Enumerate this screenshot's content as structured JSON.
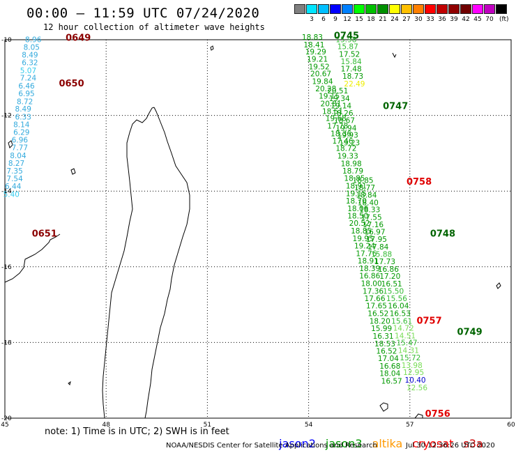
{
  "header": {
    "title": "00:00 – 11:59 UTC 07/24/2020",
    "subtitle": "12 hour collection of altimeter wave heights"
  },
  "legend": {
    "unit": "(ft)",
    "colors": [
      "#808080",
      "#00e5ff",
      "#00bfff",
      "#0000ff",
      "#0080ff",
      "#00ff00",
      "#00c000",
      "#009000",
      "#ffff00",
      "#ffc000",
      "#ff8000",
      "#ff0000",
      "#c00000",
      "#900000",
      "#700000",
      "#ff00ff",
      "#c000c0",
      "#000000"
    ],
    "labels": [
      "",
      "3",
      "6",
      "9",
      "12",
      "15",
      "18",
      "21",
      "24",
      "27",
      "30",
      "33",
      "36",
      "39",
      "42",
      "45",
      "70",
      ""
    ]
  },
  "map": {
    "x_ticks": [
      {
        "value": 45,
        "label": "45"
      },
      {
        "value": 48,
        "label": "48"
      },
      {
        "value": 51,
        "label": "51"
      },
      {
        "value": 54,
        "label": "54"
      },
      {
        "value": 57,
        "label": "57"
      },
      {
        "value": 60,
        "label": "60"
      }
    ],
    "y_ticks": [
      {
        "value": -10,
        "label": "-10"
      },
      {
        "value": -12,
        "label": "-12"
      },
      {
        "value": -14,
        "label": "-14"
      },
      {
        "value": -16,
        "label": "-16"
      },
      {
        "value": -18,
        "label": "-18"
      },
      {
        "value": -20,
        "label": "-20"
      }
    ],
    "lon_range": [
      45,
      60
    ],
    "lat_range": [
      -20,
      -10
    ],
    "passes": [
      {
        "label": "0649",
        "color": "#8b0000",
        "lon": 46.8,
        "lat": -10.03
      },
      {
        "label": "0650",
        "color": "#8b0000",
        "lon": 46.6,
        "lat": -11.23
      },
      {
        "label": "0651",
        "color": "#8b0000",
        "lon": 45.8,
        "lat": -15.2
      },
      {
        "label": "0745",
        "color": "#006400",
        "lon": 54.75,
        "lat": -9.97
      },
      {
        "label": "0747",
        "color": "#006400",
        "lon": 56.2,
        "lat": -11.83
      },
      {
        "label": "0758",
        "color": "#e00000",
        "lon": 56.9,
        "lat": -13.83
      },
      {
        "label": "0748",
        "color": "#006400",
        "lon": 57.6,
        "lat": -15.2
      },
      {
        "label": "0757",
        "color": "#e00000",
        "lon": 57.2,
        "lat": -17.5
      },
      {
        "label": "0749",
        "color": "#006400",
        "lon": 58.4,
        "lat": -17.8
      },
      {
        "label": "0756",
        "color": "#e00000",
        "lon": 57.45,
        "lat": -19.96
      }
    ],
    "track_points": [
      {
        "text": "8.96",
        "lon": 45.6,
        "lat": -10.06,
        "color": "#33aadd"
      },
      {
        "text": "8.05",
        "lon": 45.55,
        "lat": -10.27,
        "color": "#33aadd"
      },
      {
        "text": "8.49",
        "lon": 45.5,
        "lat": -10.47,
        "color": "#33aadd"
      },
      {
        "text": "6.32",
        "lon": 45.5,
        "lat": -10.67,
        "color": "#33aadd"
      },
      {
        "text": "5.07",
        "lon": 45.45,
        "lat": -10.88,
        "color": "#33ccee"
      },
      {
        "text": "7.24",
        "lon": 45.45,
        "lat": -11.08,
        "color": "#33aadd"
      },
      {
        "text": "6.46",
        "lon": 45.4,
        "lat": -11.29,
        "color": "#33aadd"
      },
      {
        "text": "6.95",
        "lon": 45.4,
        "lat": -11.49,
        "color": "#33aadd"
      },
      {
        "text": "8.72",
        "lon": 45.35,
        "lat": -11.7,
        "color": "#33aadd"
      },
      {
        "text": "8.49",
        "lon": 45.3,
        "lat": -11.9,
        "color": "#33aadd"
      },
      {
        "text": "6.33",
        "lon": 45.3,
        "lat": -12.11,
        "color": "#33aadd"
      },
      {
        "text": "8.14",
        "lon": 45.25,
        "lat": -12.31,
        "color": "#33aadd"
      },
      {
        "text": "6.29",
        "lon": 45.25,
        "lat": -12.51,
        "color": "#33aadd"
      },
      {
        "text": "6.96",
        "lon": 45.2,
        "lat": -12.72,
        "color": "#33aadd"
      },
      {
        "text": "7.77",
        "lon": 45.2,
        "lat": -12.92,
        "color": "#33aadd"
      },
      {
        "text": "8.04",
        "lon": 45.15,
        "lat": -13.13,
        "color": "#33aadd"
      },
      {
        "text": "8.27",
        "lon": 45.1,
        "lat": -13.33,
        "color": "#33aadd"
      },
      {
        "text": "7.35",
        "lon": 45.05,
        "lat": -13.54,
        "color": "#33aadd"
      },
      {
        "text": "7.54",
        "lon": 45.05,
        "lat": -13.74,
        "color": "#33aadd"
      },
      {
        "text": "6.44",
        "lon": 45.0,
        "lat": -13.94,
        "color": "#33aadd"
      },
      {
        "text": "5.40",
        "lon": 44.95,
        "lat": -14.15,
        "color": "#33ccee"
      },
      {
        "text": "18.83",
        "lon": 53.8,
        "lat": -10.0,
        "color": "#009900"
      },
      {
        "text": "18.41",
        "lon": 53.85,
        "lat": -10.2,
        "color": "#009900"
      },
      {
        "text": "19.29",
        "lon": 53.9,
        "lat": -10.39,
        "color": "#009900"
      },
      {
        "text": "19.21",
        "lon": 53.95,
        "lat": -10.58,
        "color": "#009900"
      },
      {
        "text": "19.52",
        "lon": 54.0,
        "lat": -10.78,
        "color": "#009900"
      },
      {
        "text": "20.67",
        "lon": 54.05,
        "lat": -10.97,
        "color": "#009900"
      },
      {
        "text": "19.84",
        "lon": 54.1,
        "lat": -11.17,
        "color": "#009900"
      },
      {
        "text": "20.28",
        "lon": 54.2,
        "lat": -11.36,
        "color": "#009900"
      },
      {
        "text": "19.15",
        "lon": 54.3,
        "lat": -11.56,
        "color": "#009900"
      },
      {
        "text": "20.81",
        "lon": 54.35,
        "lat": -11.76,
        "color": "#009900"
      },
      {
        "text": "18.51",
        "lon": 54.4,
        "lat": -11.96,
        "color": "#009900"
      },
      {
        "text": "19.68",
        "lon": 54.5,
        "lat": -12.15,
        "color": "#009900"
      },
      {
        "text": "17.78",
        "lon": 54.55,
        "lat": -12.35,
        "color": "#009900"
      },
      {
        "text": "18.36",
        "lon": 54.65,
        "lat": -12.55,
        "color": "#009900"
      },
      {
        "text": "17.46",
        "lon": 54.7,
        "lat": -12.74,
        "color": "#009900"
      },
      {
        "text": "18.72",
        "lon": 54.8,
        "lat": -12.94,
        "color": "#009900"
      },
      {
        "text": "19.33",
        "lon": 54.85,
        "lat": -13.14,
        "color": "#009900"
      },
      {
        "text": "18.98",
        "lon": 54.95,
        "lat": -13.34,
        "color": "#009900"
      },
      {
        "text": "18.79",
        "lon": 55.0,
        "lat": -13.54,
        "color": "#009900"
      },
      {
        "text": "18.85",
        "lon": 55.05,
        "lat": -13.73,
        "color": "#009900"
      },
      {
        "text": "18.91",
        "lon": 55.1,
        "lat": -13.93,
        "color": "#009900"
      },
      {
        "text": "19.15",
        "lon": 55.1,
        "lat": -14.13,
        "color": "#009900"
      },
      {
        "text": "18.70",
        "lon": 55.1,
        "lat": -14.33,
        "color": "#009900"
      },
      {
        "text": "18.06",
        "lon": 55.15,
        "lat": -14.53,
        "color": "#009900"
      },
      {
        "text": "18.50",
        "lon": 55.15,
        "lat": -14.72,
        "color": "#009900"
      },
      {
        "text": "20.52",
        "lon": 55.2,
        "lat": -14.92,
        "color": "#009900"
      },
      {
        "text": "18.85",
        "lon": 55.25,
        "lat": -15.12,
        "color": "#009900"
      },
      {
        "text": "19.95",
        "lon": 55.3,
        "lat": -15.32,
        "color": "#009900"
      },
      {
        "text": "19.24",
        "lon": 55.35,
        "lat": -15.52,
        "color": "#009900"
      },
      {
        "text": "17.76",
        "lon": 55.4,
        "lat": -15.72,
        "color": "#009900"
      },
      {
        "text": "18.91",
        "lon": 55.45,
        "lat": -15.91,
        "color": "#009900"
      },
      {
        "text": "18.39",
        "lon": 55.5,
        "lat": -16.11,
        "color": "#009900"
      },
      {
        "text": "16.86",
        "lon": 55.5,
        "lat": -16.31,
        "color": "#009900"
      },
      {
        "text": "18.00",
        "lon": 55.55,
        "lat": -16.51,
        "color": "#009900"
      },
      {
        "text": "17.36",
        "lon": 55.6,
        "lat": -16.71,
        "color": "#009900"
      },
      {
        "text": "17.66",
        "lon": 55.65,
        "lat": -16.91,
        "color": "#009900"
      },
      {
        "text": "17.65",
        "lon": 55.7,
        "lat": -17.1,
        "color": "#009900"
      },
      {
        "text": "16.52",
        "lon": 55.75,
        "lat": -17.3,
        "color": "#009900"
      },
      {
        "text": "18.20",
        "lon": 55.8,
        "lat": -17.5,
        "color": "#009900"
      },
      {
        "text": "15.99",
        "lon": 55.85,
        "lat": -17.7,
        "color": "#009900"
      },
      {
        "text": "16.31",
        "lon": 55.9,
        "lat": -17.9,
        "color": "#009900"
      },
      {
        "text": "18.53",
        "lon": 55.95,
        "lat": -18.1,
        "color": "#009900"
      },
      {
        "text": "16.52",
        "lon": 56.0,
        "lat": -18.3,
        "color": "#009900"
      },
      {
        "text": "17.04",
        "lon": 56.05,
        "lat": -18.49,
        "color": "#009900"
      },
      {
        "text": "16.68",
        "lon": 56.1,
        "lat": -18.69,
        "color": "#009900"
      },
      {
        "text": "18.04",
        "lon": 56.1,
        "lat": -18.89,
        "color": "#009900"
      },
      {
        "text": "16.57",
        "lon": 56.15,
        "lat": -19.09,
        "color": "#009900"
      },
      {
        "text": "15.98",
        "lon": 54.8,
        "lat": -10.06,
        "color": "#33bb33"
      },
      {
        "text": "15.87",
        "lon": 54.85,
        "lat": -10.25,
        "color": "#33bb33"
      },
      {
        "text": "17.52",
        "lon": 54.9,
        "lat": -10.45,
        "color": "#009900"
      },
      {
        "text": "15.84",
        "lon": 54.95,
        "lat": -10.64,
        "color": "#33bb33"
      },
      {
        "text": "17.48",
        "lon": 54.95,
        "lat": -10.84,
        "color": "#009900"
      },
      {
        "text": "18.73",
        "lon": 55.0,
        "lat": -11.03,
        "color": "#009900"
      },
      {
        "text": "22.49",
        "lon": 55.05,
        "lat": -11.23,
        "color": "#eeee00"
      },
      {
        "text": "20.51",
        "lon": 54.55,
        "lat": -11.42,
        "color": "#009900"
      },
      {
        "text": "19.34",
        "lon": 54.6,
        "lat": -11.62,
        "color": "#009900"
      },
      {
        "text": "19.14",
        "lon": 54.65,
        "lat": -11.81,
        "color": "#009900"
      },
      {
        "text": "18.26",
        "lon": 54.7,
        "lat": -12.01,
        "color": "#009900"
      },
      {
        "text": "18.67",
        "lon": 54.75,
        "lat": -12.2,
        "color": "#009900"
      },
      {
        "text": "19.94",
        "lon": 54.8,
        "lat": -12.4,
        "color": "#009900"
      },
      {
        "text": "19.93",
        "lon": 54.85,
        "lat": -12.59,
        "color": "#009900"
      },
      {
        "text": "19.23",
        "lon": 54.9,
        "lat": -12.79,
        "color": "#009900"
      },
      {
        "text": "18.85",
        "lon": 55.3,
        "lat": -13.78,
        "color": "#009900"
      },
      {
        "text": "18.77",
        "lon": 55.35,
        "lat": -13.98,
        "color": "#009900"
      },
      {
        "text": "18.84",
        "lon": 55.4,
        "lat": -14.17,
        "color": "#009900"
      },
      {
        "text": "18.40",
        "lon": 55.45,
        "lat": -14.37,
        "color": "#009900"
      },
      {
        "text": "18.33",
        "lon": 55.5,
        "lat": -14.56,
        "color": "#009900"
      },
      {
        "text": "17.55",
        "lon": 55.55,
        "lat": -14.76,
        "color": "#009900"
      },
      {
        "text": "17.16",
        "lon": 55.6,
        "lat": -14.95,
        "color": "#009900"
      },
      {
        "text": "16.97",
        "lon": 55.65,
        "lat": -15.15,
        "color": "#009900"
      },
      {
        "text": "17.95",
        "lon": 55.7,
        "lat": -15.34,
        "color": "#009900"
      },
      {
        "text": "17.84",
        "lon": 55.75,
        "lat": -15.54,
        "color": "#009900"
      },
      {
        "text": "15.88",
        "lon": 55.85,
        "lat": -15.74,
        "color": "#33bb33"
      },
      {
        "text": "17.73",
        "lon": 55.95,
        "lat": -15.93,
        "color": "#009900"
      },
      {
        "text": "16.86",
        "lon": 56.05,
        "lat": -16.13,
        "color": "#009900"
      },
      {
        "text": "17.20",
        "lon": 56.1,
        "lat": -16.32,
        "color": "#009900"
      },
      {
        "text": "16.51",
        "lon": 56.15,
        "lat": -16.52,
        "color": "#009900"
      },
      {
        "text": "15.50",
        "lon": 56.2,
        "lat": -16.71,
        "color": "#33bb33"
      },
      {
        "text": "15.56",
        "lon": 56.3,
        "lat": -16.91,
        "color": "#33bb33"
      },
      {
        "text": "16.04",
        "lon": 56.35,
        "lat": -17.1,
        "color": "#009900"
      },
      {
        "text": "16.53",
        "lon": 56.4,
        "lat": -17.3,
        "color": "#009900"
      },
      {
        "text": "15.61",
        "lon": 56.45,
        "lat": -17.5,
        "color": "#33bb33"
      },
      {
        "text": "14.72",
        "lon": 56.5,
        "lat": -17.69,
        "color": "#77dd55"
      },
      {
        "text": "14.51",
        "lon": 56.55,
        "lat": -17.89,
        "color": "#77dd55"
      },
      {
        "text": "15.47",
        "lon": 56.6,
        "lat": -18.08,
        "color": "#33bb33"
      },
      {
        "text": "14.31",
        "lon": 56.65,
        "lat": -18.28,
        "color": "#77dd55"
      },
      {
        "text": "15.72",
        "lon": 56.7,
        "lat": -18.47,
        "color": "#33bb33"
      },
      {
        "text": "13.98",
        "lon": 56.75,
        "lat": -18.67,
        "color": "#77dd55"
      },
      {
        "text": "12.95",
        "lon": 56.8,
        "lat": -18.86,
        "color": "#77dd55"
      },
      {
        "text": "10.40",
        "lon": 56.85,
        "lat": -19.06,
        "color": "#0000cc"
      },
      {
        "text": "12.56",
        "lon": 56.9,
        "lat": -19.26,
        "color": "#77dd55"
      }
    ]
  },
  "footer": {
    "note": "note: 1) Time is in UTC; 2) SWH is in feet",
    "satellites": [
      {
        "name": "jason2",
        "color": "#0000ff"
      },
      {
        "name": "jason3",
        "color": "#009900"
      },
      {
        "name": "altika",
        "color": "#ff9900"
      },
      {
        "name": "cryosat",
        "color": "#ff0000"
      },
      {
        "name": "s3a",
        "color": "#cc0000"
      }
    ],
    "credit": "NOAA/NESDIS Center for Satellite Applications and Research",
    "timestamp": "Jul 30 12:36:26 UTC 2020"
  }
}
